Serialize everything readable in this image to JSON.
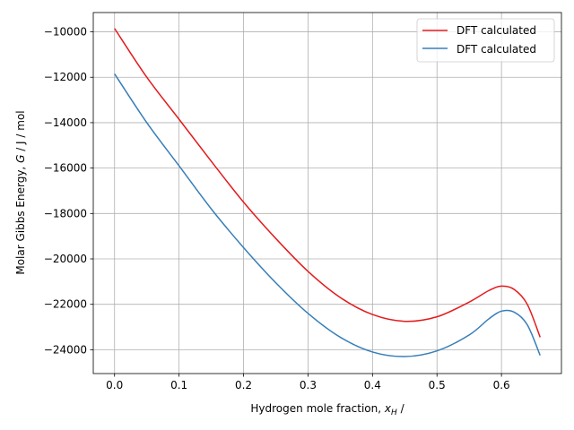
{
  "chart_data": {
    "type": "line",
    "title": "",
    "xlabel_prefix": "Hydrogen mole fraction, ",
    "xlabel_var": "x",
    "xlabel_sub": "H",
    "xlabel_suffix": " /",
    "ylabel_prefix": "Molar Gibbs Energy, ",
    "ylabel_var": "G",
    "ylabel_suffix": " / J / mol",
    "xlim": [
      -0.033,
      0.693
    ],
    "ylim": [
      -25050,
      -9150
    ],
    "xticks": [
      0.0,
      0.1,
      0.2,
      0.3,
      0.4,
      0.5,
      0.6
    ],
    "xtick_labels": [
      "0.0",
      "0.1",
      "0.2",
      "0.3",
      "0.4",
      "0.5",
      "0.6"
    ],
    "yticks": [
      -24000,
      -22000,
      -20000,
      -18000,
      -16000,
      -14000,
      -12000,
      -10000
    ],
    "ytick_labels": [
      "−24000",
      "−22000",
      "−20000",
      "−18000",
      "−16000",
      "−14000",
      "−12000",
      "−10000"
    ],
    "grid": true,
    "legend_position": "top-right",
    "series": [
      {
        "name": "DFT calculated",
        "color": "#e41a1c",
        "x": [
          0.0,
          0.05,
          0.1,
          0.15,
          0.2,
          0.25,
          0.3,
          0.35,
          0.4,
          0.45,
          0.5,
          0.55,
          0.58,
          0.6,
          0.62,
          0.64,
          0.66
        ],
        "y": [
          -9850,
          -12000,
          -13850,
          -15700,
          -17500,
          -19100,
          -20550,
          -21700,
          -22450,
          -22750,
          -22550,
          -21900,
          -21400,
          -21200,
          -21350,
          -22000,
          -23450
        ]
      },
      {
        "name": "DFT calculated",
        "color": "#377eb8",
        "x": [
          0.0,
          0.05,
          0.1,
          0.15,
          0.2,
          0.25,
          0.3,
          0.35,
          0.4,
          0.45,
          0.5,
          0.55,
          0.58,
          0.6,
          0.62,
          0.64,
          0.66
        ],
        "y": [
          -11850,
          -14000,
          -15900,
          -17800,
          -19500,
          -21050,
          -22400,
          -23450,
          -24100,
          -24300,
          -24050,
          -23350,
          -22650,
          -22300,
          -22350,
          -22900,
          -24250
        ]
      }
    ]
  }
}
